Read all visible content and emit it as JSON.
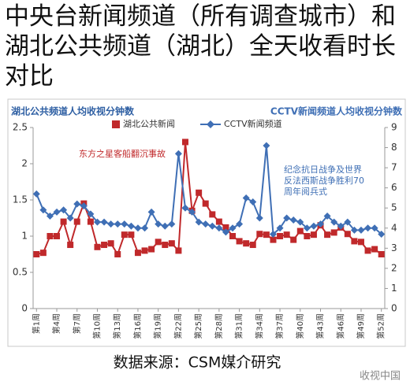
{
  "chart_data": {
    "type": "line",
    "title": "中央台新闻频道（所有调查城市）和湖北公共频道（湖北）全天收看时长对比",
    "ylabel": "湖北公共频道人均收视分钟数",
    "y2label": "CCTV新闻频道人均收视分钟数",
    "categories": [
      "第1周",
      null,
      null,
      "第4周",
      null,
      null,
      "第7周",
      null,
      null,
      "第10周",
      null,
      null,
      "第13周",
      null,
      null,
      "第16周",
      null,
      null,
      "第19周",
      null,
      null,
      "第22周",
      null,
      null,
      "第25周",
      null,
      null,
      "第28周",
      null,
      null,
      "第31周",
      null,
      null,
      "第34周",
      null,
      null,
      "第37周",
      null,
      null,
      "第40周",
      null,
      null,
      "第43周",
      null,
      null,
      "第46周",
      null,
      null,
      "第49周",
      null,
      null,
      "第52周"
    ],
    "series": [
      {
        "name": "湖北公共新闻",
        "color": "#c0292b",
        "marker": "square",
        "values": [
          0.75,
          0.77,
          1.0,
          1.0,
          1.2,
          0.88,
          1.2,
          1.45,
          1.2,
          0.85,
          0.88,
          0.9,
          0.75,
          1.02,
          1.02,
          0.77,
          0.8,
          0.82,
          0.92,
          0.88,
          0.9,
          0.8,
          2.3,
          1.35,
          1.6,
          1.45,
          1.3,
          1.2,
          1.12,
          1.0,
          0.93,
          0.9,
          0.88,
          1.03,
          1.02,
          0.95,
          1.0,
          1.02,
          0.95,
          1.07,
          1.0,
          1.02,
          1.15,
          1.02,
          1.05,
          1.12,
          1.03,
          0.93,
          0.92,
          0.8,
          0.82,
          0.75
        ]
      },
      {
        "name": "CCTV新闻频道",
        "color": "#3f6fb5",
        "marker": "diamond",
        "axis": "y2",
        "values": [
          5.7,
          4.9,
          4.6,
          4.8,
          4.9,
          4.5,
          5.2,
          5.1,
          4.7,
          4.3,
          4.3,
          4.2,
          4.2,
          4.2,
          4.1,
          4.0,
          4.0,
          4.8,
          4.2,
          4.1,
          4.2,
          7.7,
          5.0,
          4.8,
          4.3,
          4.2,
          4.1,
          4.0,
          3.8,
          4.0,
          4.2,
          5.5,
          5.3,
          4.5,
          8.1,
          3.7,
          4.0,
          4.5,
          4.4,
          4.3,
          4.0,
          4.1,
          4.2,
          4.6,
          4.3,
          4.1,
          4.3,
          3.9,
          3.9,
          4.0,
          4.0,
          3.7
        ]
      }
    ],
    "ylim": [
      0,
      2.5
    ],
    "yticks": [
      0,
      0.5,
      1,
      1.5,
      2,
      2.5
    ],
    "y2lim": [
      0,
      9
    ],
    "y2ticks": [
      0,
      1,
      2,
      3,
      4,
      5,
      6,
      7,
      8,
      9
    ],
    "grid": false,
    "annotations": [
      {
        "color": "#c0292b",
        "lines": [
          "东方之星客船翻沉事故"
        ]
      },
      {
        "color": "#3f6fb5",
        "lines": [
          "纪念抗日战争及世界",
          "反法西斯战争胜利70",
          "周年阅兵式"
        ]
      }
    ],
    "source": "数据来源：CSM媒介研究",
    "watermark": "收视中国"
  }
}
